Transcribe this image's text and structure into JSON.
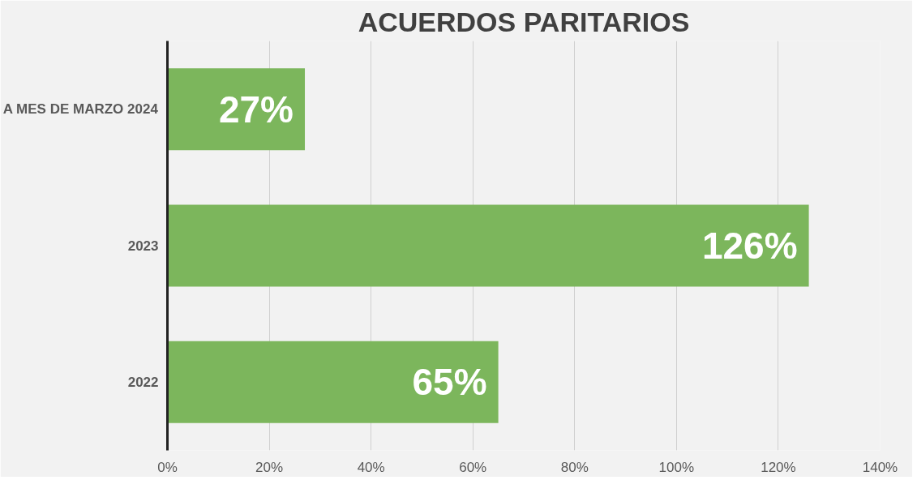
{
  "chart_data": {
    "type": "bar",
    "orientation": "horizontal",
    "title": "ACUERDOS PARITARIOS",
    "categories": [
      "A MES DE MARZO 2024",
      "2023",
      "2022"
    ],
    "values": [
      27,
      126,
      65
    ],
    "color": "#7cb65c",
    "value_labels": [
      "27%",
      "126%",
      "65%"
    ],
    "xlim": [
      0,
      140
    ],
    "xticks": [
      {
        "value": 0,
        "label": "0%"
      },
      {
        "value": 20,
        "label": "20%"
      },
      {
        "value": 40,
        "label": "40%"
      },
      {
        "value": 60,
        "label": "60%"
      },
      {
        "value": 80,
        "label": "80%"
      },
      {
        "value": 100,
        "label": "100%"
      },
      {
        "value": 120,
        "label": "120%"
      },
      {
        "value": 140,
        "label": "140%"
      }
    ],
    "grid": "x"
  }
}
